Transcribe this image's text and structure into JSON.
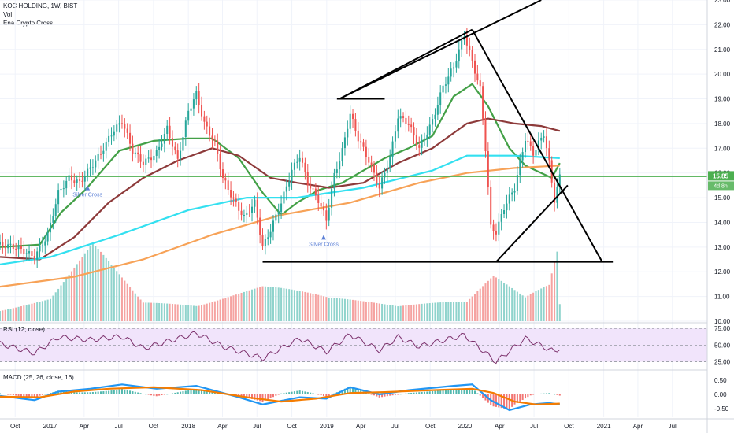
{
  "header": {
    "symbol_line": "KOC HOLDING, 1W, BIST",
    "vol_label": "Vol",
    "indicator_label": "Ena Crypto Cross"
  },
  "price_badge": {
    "price": "15.85",
    "countdown": "4d 8h"
  },
  "annotations": [
    {
      "text": "Silver Cross",
      "date": "2017-04-10",
      "price": 15.3
    },
    {
      "text": "Silver Cross",
      "date": "2018-12-24",
      "price": 13.3
    }
  ],
  "rsi": {
    "label": "RSI (12, close)",
    "levels": [
      75.0,
      50.0,
      25.0
    ]
  },
  "macd": {
    "label": "MACD (25, 26, close, 16)",
    "levels": [
      0.5,
      0.0,
      -0.5
    ]
  },
  "colors": {
    "up": "#26a69a",
    "down": "#ef5350",
    "vol_up": "#8fd3cc",
    "vol_down": "#f5a3a1",
    "ma_green": "#43a047",
    "ma_maroon": "#8d3a3a",
    "ma_cyan": "#33e0f0",
    "ma_orange": "#f7a257",
    "rsi_line": "#7b2f6b",
    "rsi_band": "#f1e4fb",
    "macd_line": "#2196f3",
    "signal_line": "#f57c00",
    "price_line": "#4caf50",
    "trendline": "#000000"
  },
  "chart_data": {
    "type": "candlestick",
    "interval": "1W",
    "ylim": [
      10.0,
      23.0
    ],
    "y_ticks": [
      "23.00",
      "22.00",
      "21.00",
      "20.00",
      "19.00",
      "18.00",
      "17.00",
      "16.00",
      "15.00",
      "14.00",
      "13.00",
      "12.00",
      "11.00",
      "10.00"
    ],
    "x_ticks": [
      "Oct",
      "2017",
      "Apr",
      "Jul",
      "Oct",
      "2018",
      "Apr",
      "Jul",
      "Oct",
      "2019",
      "Apr",
      "Jul",
      "Oct",
      "2020",
      "Apr",
      "Jul",
      "Oct",
      "2021",
      "Apr",
      "Jul"
    ],
    "x_tick_dates": [
      "2016-10-01",
      "2017-01-01",
      "2017-04-01",
      "2017-07-01",
      "2017-10-01",
      "2018-01-01",
      "2018-04-01",
      "2018-07-01",
      "2018-10-01",
      "2019-01-01",
      "2019-04-01",
      "2019-07-01",
      "2019-10-01",
      "2020-01-01",
      "2020-04-01",
      "2020-07-01",
      "2020-10-01",
      "2021-01-01",
      "2021-04-01",
      "2021-07-01"
    ],
    "date_range": [
      "2016-08-22",
      "2021-09-20"
    ],
    "price_line": 15.85,
    "close_path": [
      [
        "2016-08-22",
        13.1
      ],
      [
        "2016-10-03",
        13.0
      ],
      [
        "2016-11-21",
        12.6
      ],
      [
        "2016-12-26",
        13.5
      ],
      [
        "2017-01-23",
        15.2
      ],
      [
        "2017-02-20",
        15.8
      ],
      [
        "2017-03-20",
        15.6
      ],
      [
        "2017-04-17",
        16.2
      ],
      [
        "2017-05-15",
        16.8
      ],
      [
        "2017-06-12",
        17.6
      ],
      [
        "2017-07-10",
        18.1
      ],
      [
        "2017-08-07",
        16.9
      ],
      [
        "2017-09-04",
        16.4
      ],
      [
        "2017-10-09",
        16.8
      ],
      [
        "2017-11-06",
        17.8
      ],
      [
        "2017-12-04",
        16.5
      ],
      [
        "2018-01-01",
        18.5
      ],
      [
        "2018-01-22",
        19.2
      ],
      [
        "2018-02-12",
        18.0
      ],
      [
        "2018-03-12",
        17.2
      ],
      [
        "2018-04-02",
        15.8
      ],
      [
        "2018-04-30",
        14.9
      ],
      [
        "2018-05-28",
        14.2
      ],
      [
        "2018-06-25",
        14.8
      ],
      [
        "2018-07-16",
        13.0
      ],
      [
        "2018-08-06",
        13.7
      ],
      [
        "2018-09-03",
        14.8
      ],
      [
        "2018-10-01",
        16.1
      ],
      [
        "2018-10-22",
        16.7
      ],
      [
        "2018-11-12",
        15.6
      ],
      [
        "2018-12-10",
        14.9
      ],
      [
        "2018-12-31",
        14.1
      ],
      [
        "2019-01-21",
        15.9
      ],
      [
        "2019-02-11",
        16.9
      ],
      [
        "2019-03-04",
        18.4
      ],
      [
        "2019-03-25",
        17.4
      ],
      [
        "2019-04-22",
        16.5
      ],
      [
        "2019-05-20",
        15.4
      ],
      [
        "2019-06-17",
        16.6
      ],
      [
        "2019-07-08",
        18.3
      ],
      [
        "2019-08-05",
        18.0
      ],
      [
        "2019-09-02",
        17.0
      ],
      [
        "2019-10-07",
        18.1
      ],
      [
        "2019-11-04",
        19.5
      ],
      [
        "2019-12-02",
        20.3
      ],
      [
        "2019-12-30",
        21.6
      ],
      [
        "2020-01-20",
        20.5
      ],
      [
        "2020-02-10",
        19.4
      ],
      [
        "2020-02-24",
        17.0
      ],
      [
        "2020-03-09",
        13.8
      ],
      [
        "2020-03-23",
        13.6
      ],
      [
        "2020-04-13",
        14.6
      ],
      [
        "2020-05-11",
        15.4
      ],
      [
        "2020-06-08",
        17.4
      ],
      [
        "2020-06-29",
        16.8
      ],
      [
        "2020-07-27",
        17.6
      ],
      [
        "2020-08-10",
        16.4
      ],
      [
        "2020-08-24",
        14.9
      ],
      [
        "2020-09-07",
        15.85
      ]
    ],
    "moving_averages": [
      {
        "color": "#43a047",
        "points": [
          [
            "2016-08-22",
            13.0
          ],
          [
            "2016-12-05",
            13.1
          ],
          [
            "2017-01-30",
            14.4
          ],
          [
            "2017-04-03",
            15.3
          ],
          [
            "2017-07-03",
            16.9
          ],
          [
            "2017-10-02",
            17.3
          ],
          [
            "2018-01-01",
            17.4
          ],
          [
            "2018-03-05",
            17.4
          ],
          [
            "2018-05-14",
            16.6
          ],
          [
            "2018-07-16",
            15.2
          ],
          [
            "2018-09-03",
            14.3
          ],
          [
            "2018-10-15",
            14.8
          ],
          [
            "2018-12-10",
            15.3
          ],
          [
            "2019-02-11",
            15.6
          ],
          [
            "2019-04-08",
            16.1
          ],
          [
            "2019-06-03",
            16.6
          ],
          [
            "2019-08-05",
            17.0
          ],
          [
            "2019-10-07",
            17.5
          ],
          [
            "2019-12-02",
            19.1
          ],
          [
            "2020-01-20",
            19.6
          ],
          [
            "2020-03-02",
            18.7
          ],
          [
            "2020-04-27",
            17.0
          ],
          [
            "2020-06-08",
            16.3
          ],
          [
            "2020-07-20",
            16.0
          ],
          [
            "2020-08-17",
            15.8
          ],
          [
            "2020-09-07",
            16.4
          ]
        ]
      },
      {
        "color": "#8d3a3a",
        "points": [
          [
            "2016-08-22",
            12.6
          ],
          [
            "2016-12-05",
            12.5
          ],
          [
            "2017-03-06",
            13.4
          ],
          [
            "2017-06-05",
            14.8
          ],
          [
            "2017-09-04",
            15.8
          ],
          [
            "2017-12-04",
            16.5
          ],
          [
            "2018-03-05",
            17.0
          ],
          [
            "2018-05-14",
            16.7
          ],
          [
            "2018-08-06",
            15.8
          ],
          [
            "2018-10-15",
            15.6
          ],
          [
            "2019-01-07",
            15.4
          ],
          [
            "2019-04-08",
            15.6
          ],
          [
            "2019-07-08",
            16.4
          ],
          [
            "2019-10-07",
            17.0
          ],
          [
            "2020-01-06",
            18.0
          ],
          [
            "2020-03-02",
            18.2
          ],
          [
            "2020-05-11",
            18.0
          ],
          [
            "2020-07-20",
            17.9
          ],
          [
            "2020-09-07",
            17.7
          ]
        ]
      },
      {
        "color": "#33e0f0",
        "points": [
          [
            "2016-08-22",
            12.3
          ],
          [
            "2017-01-02",
            12.6
          ],
          [
            "2017-07-03",
            13.5
          ],
          [
            "2018-01-01",
            14.5
          ],
          [
            "2018-06-04",
            15.0
          ],
          [
            "2018-10-15",
            15.0
          ],
          [
            "2019-04-08",
            15.4
          ],
          [
            "2019-10-07",
            16.1
          ],
          [
            "2020-01-06",
            16.7
          ],
          [
            "2020-05-11",
            16.7
          ],
          [
            "2020-09-07",
            16.6
          ]
        ]
      },
      {
        "color": "#f7a257",
        "points": [
          [
            "2016-08-22",
            11.4
          ],
          [
            "2017-03-06",
            11.8
          ],
          [
            "2017-09-04",
            12.5
          ],
          [
            "2018-03-05",
            13.5
          ],
          [
            "2018-09-03",
            14.3
          ],
          [
            "2019-03-04",
            14.8
          ],
          [
            "2019-09-02",
            15.6
          ],
          [
            "2020-01-06",
            16.0
          ],
          [
            "2020-05-11",
            16.2
          ],
          [
            "2020-09-07",
            16.3
          ]
        ]
      }
    ],
    "volume_path": [
      [
        "2016-08-22",
        0.2
      ],
      [
        "2017-01-02",
        0.3
      ],
      [
        "2017-04-24",
        0.95
      ],
      [
        "2017-09-04",
        0.25
      ],
      [
        "2018-01-22",
        0.3
      ],
      [
        "2018-07-16",
        0.45
      ],
      [
        "2019-01-07",
        0.3
      ],
      [
        "2019-07-08",
        0.3
      ],
      [
        "2020-01-06",
        0.25
      ],
      [
        "2020-03-16",
        0.55
      ],
      [
        "2020-06-08",
        0.3
      ],
      [
        "2020-08-10",
        0.5
      ],
      [
        "2020-08-31",
        1.0
      ],
      [
        "2020-09-07",
        0.25
      ]
    ],
    "rsi_path": [
      [
        "2016-08-22",
        52
      ],
      [
        "2016-11-21",
        38
      ],
      [
        "2017-01-23",
        62
      ],
      [
        "2017-04-17",
        58
      ],
      [
        "2017-07-10",
        63
      ],
      [
        "2017-09-04",
        45
      ],
      [
        "2018-01-22",
        68
      ],
      [
        "2018-04-02",
        48
      ],
      [
        "2018-07-16",
        30
      ],
      [
        "2018-10-22",
        60
      ],
      [
        "2018-12-31",
        40
      ],
      [
        "2019-03-04",
        66
      ],
      [
        "2019-05-20",
        42
      ],
      [
        "2019-07-08",
        62
      ],
      [
        "2019-09-02",
        48
      ],
      [
        "2019-12-30",
        65
      ],
      [
        "2020-03-23",
        25
      ],
      [
        "2020-06-08",
        60
      ],
      [
        "2020-08-24",
        40
      ],
      [
        "2020-09-07",
        46
      ]
    ],
    "macd_path": [
      [
        "2016-08-22",
        -0.05
      ],
      [
        "2016-11-21",
        -0.2
      ],
      [
        "2017-01-23",
        0.1
      ],
      [
        "2017-04-17",
        0.2
      ],
      [
        "2017-07-10",
        0.35
      ],
      [
        "2017-10-09",
        0.2
      ],
      [
        "2018-01-22",
        0.3
      ],
      [
        "2018-05-14",
        -0.1
      ],
      [
        "2018-07-16",
        -0.35
      ],
      [
        "2018-10-22",
        -0.1
      ],
      [
        "2018-12-31",
        -0.15
      ],
      [
        "2019-03-04",
        0.25
      ],
      [
        "2019-05-20",
        0.0
      ],
      [
        "2019-08-05",
        0.15
      ],
      [
        "2019-12-02",
        0.3
      ],
      [
        "2020-01-20",
        0.35
      ],
      [
        "2020-03-09",
        -0.2
      ],
      [
        "2020-04-27",
        -0.55
      ],
      [
        "2020-06-22",
        -0.35
      ],
      [
        "2020-08-10",
        -0.3
      ],
      [
        "2020-09-07",
        -0.35
      ]
    ],
    "signal_path": [
      [
        "2016-08-22",
        -0.08
      ],
      [
        "2016-12-05",
        -0.1
      ],
      [
        "2017-03-06",
        0.1
      ],
      [
        "2017-06-05",
        0.2
      ],
      [
        "2017-10-02",
        0.25
      ],
      [
        "2018-02-05",
        0.15
      ],
      [
        "2018-06-04",
        -0.1
      ],
      [
        "2018-09-03",
        -0.25
      ],
      [
        "2018-12-03",
        -0.15
      ],
      [
        "2019-03-04",
        0.05
      ],
      [
        "2019-06-03",
        0.08
      ],
      [
        "2019-10-07",
        0.15
      ],
      [
        "2020-01-20",
        0.2
      ],
      [
        "2020-03-16",
        0.05
      ],
      [
        "2020-05-11",
        -0.25
      ],
      [
        "2020-07-06",
        -0.35
      ],
      [
        "2020-09-07",
        -0.32
      ]
    ],
    "trendlines": [
      {
        "from": [
          "2019-02-04",
          19.0
        ],
        "to": [
          "2020-01-20",
          21.8
        ]
      },
      {
        "from": [
          "2020-01-20",
          21.8
        ],
        "to": [
          "2020-12-28",
          12.4
        ]
      },
      {
        "from": [
          "2018-07-16",
          12.4
        ],
        "to": [
          "2021-01-25",
          12.4
        ]
      },
      {
        "from": [
          "2020-03-23",
          12.4
        ],
        "to": [
          "2020-09-28",
          15.5
        ]
      },
      {
        "from": [
          "2019-01-28",
          19.0
        ],
        "to": [
          "2019-06-03",
          19.0
        ]
      }
    ]
  }
}
